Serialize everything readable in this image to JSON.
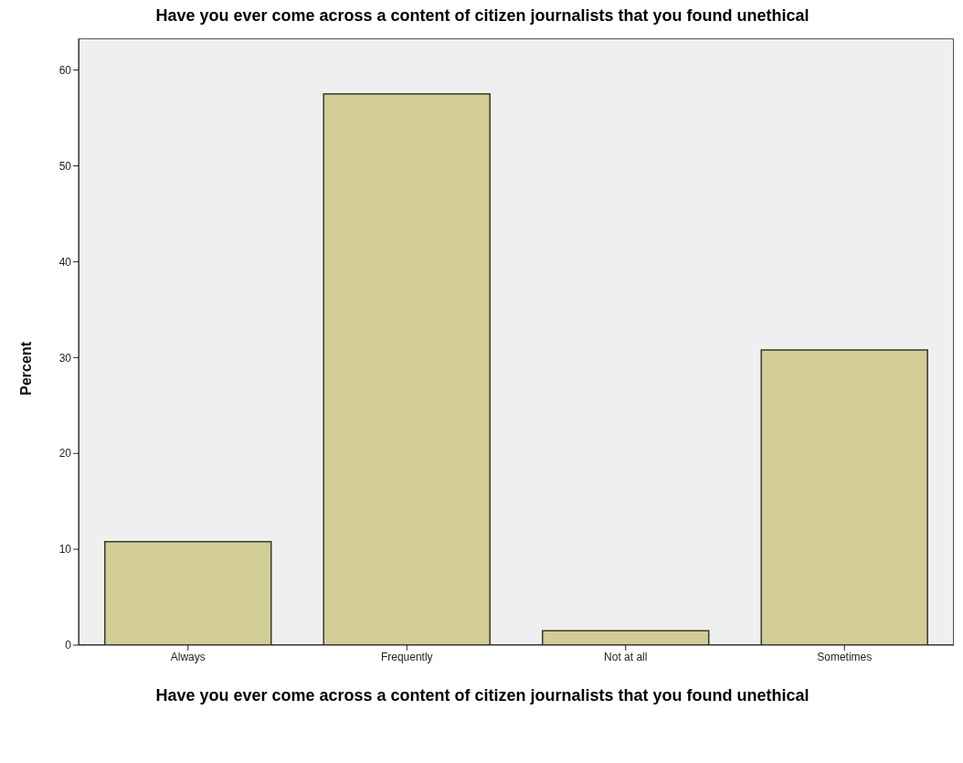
{
  "chart_data": {
    "type": "bar",
    "title": "Have you ever come across a content of citizen journalists that you found unethical",
    "xlabel": "Have you ever come across a content of citizen journalists that you found unethical",
    "ylabel": "Percent",
    "categories": [
      "Always",
      "Frequently",
      "Not at all",
      "Sometimes"
    ],
    "values": [
      10.8,
      57.5,
      1.5,
      30.8
    ],
    "color": "#d2cc95",
    "ylim": [
      0,
      63.3
    ],
    "yticks": [
      0,
      10,
      20,
      30,
      40,
      50,
      60
    ]
  }
}
